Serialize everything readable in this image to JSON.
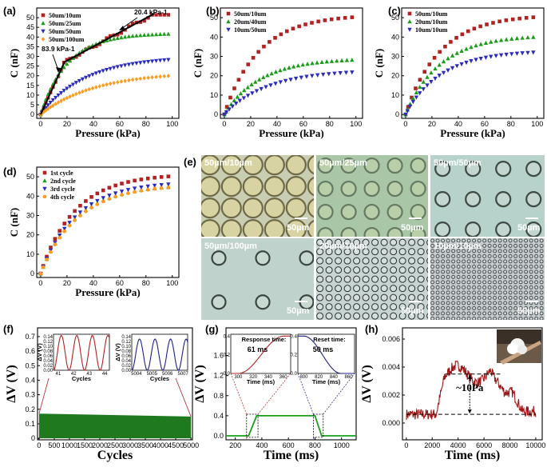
{
  "figure": {
    "colors": {
      "red": "#b22222",
      "green": "#1a9e1a",
      "blue": "#2b2bbd",
      "orange": "#ff9a1f",
      "dkred": "#a01515",
      "dkblue": "#1e1e8c",
      "dgreen": "#1f7a1f"
    },
    "micro_labels": [
      "50µm/10µm",
      "50µm/25µm",
      "50µm/50µm",
      "50µm/100µm",
      "20µm/10µm",
      "10µm/10µm"
    ],
    "scale_bar": "50µm"
  },
  "chart_data": [
    {
      "id": "a",
      "panel_label": "(a)",
      "type": "scatter",
      "xlabel": "Pressure (kPa)",
      "ylabel": "C (nF)",
      "xlim": [
        -3,
        105
      ],
      "ylim": [
        -2,
        55
      ],
      "xticks": [
        0,
        20,
        40,
        60,
        80,
        100
      ],
      "yticks": [
        0,
        5,
        10,
        15,
        20,
        25,
        30,
        35,
        40,
        45,
        50
      ],
      "series": [
        {
          "name": "50um/10um",
          "color": "#b22222",
          "marker": "square",
          "n": 40,
          "kind": "fit",
          "a": 80,
          "b": 48,
          "ymax": 51.5
        },
        {
          "name": "50um/25um",
          "color": "#1a9e1a",
          "marker": "triangle",
          "n": 40,
          "kind": "sat",
          "a": 48,
          "b": 38,
          "ymax": 42
        },
        {
          "name": "50um/50um",
          "color": "#2b2bbd",
          "marker": "tridown",
          "n": 40,
          "kind": "sat",
          "a": 41,
          "b": 62,
          "ymax": 30
        },
        {
          "name": "50um/100um",
          "color": "#ff9a1f",
          "marker": "diamond",
          "n": 40,
          "kind": "sat",
          "a": 30,
          "b": 75,
          "ymax": 22
        }
      ],
      "fit_lines": [
        [
          [
            0,
            0
          ],
          [
            18,
            27
          ]
        ],
        [
          [
            18,
            27
          ],
          [
            86,
            52
          ]
        ]
      ],
      "annotations": [
        {
          "text": "83.9 kPa-1"
        },
        {
          "text": "20.4 kPa-1"
        }
      ]
    },
    {
      "id": "b",
      "panel_label": "(b)",
      "type": "scatter",
      "xlabel": "Pressure (kPa)",
      "ylabel": "C (nF)",
      "xlim": [
        -3,
        105
      ],
      "ylim": [
        -2,
        55
      ],
      "xticks": [
        0,
        20,
        40,
        60,
        80,
        100
      ],
      "yticks": [
        0,
        10,
        20,
        30,
        40,
        50
      ],
      "series": [
        {
          "name": "50um/10um",
          "color": "#b22222",
          "marker": "square",
          "n": 24,
          "kind": "sat",
          "a": 80,
          "b": 48,
          "ymax": 51.5
        },
        {
          "name": "20um/40um",
          "color": "#1a9e1a",
          "marker": "triangle",
          "n": 32,
          "kind": "sat",
          "a": 40,
          "b": 50,
          "ymax": 29
        },
        {
          "name": "10um/50um",
          "color": "#2b2bbd",
          "marker": "tridown",
          "n": 28,
          "kind": "sat",
          "a": 32,
          "b": 60,
          "ymax": 23
        }
      ]
    },
    {
      "id": "c",
      "panel_label": "(c)",
      "type": "scatter",
      "xlabel": "Pressure (kPa)",
      "ylabel": "C (nF)",
      "xlim": [
        -3,
        105
      ],
      "ylim": [
        -2,
        55
      ],
      "xticks": [
        0,
        20,
        40,
        60,
        80,
        100
      ],
      "yticks": [
        0,
        10,
        20,
        30,
        40,
        50
      ],
      "series": [
        {
          "name": "50um/10um",
          "color": "#b22222",
          "marker": "square",
          "n": 24,
          "kind": "sat",
          "a": 80,
          "b": 48,
          "ymax": 51.5
        },
        {
          "name": "20um/10um",
          "color": "#1a9e1a",
          "marker": "triangle",
          "n": 30,
          "kind": "sat",
          "a": 60,
          "b": 48,
          "ymax": 41
        },
        {
          "name": "10um/10um",
          "color": "#2b2bbd",
          "marker": "tridown",
          "n": 30,
          "kind": "sat",
          "a": 48,
          "b": 50,
          "ymax": 33
        }
      ]
    },
    {
      "id": "d",
      "panel_label": "(d)",
      "type": "scatter",
      "xlabel": "Pressure (kPa)",
      "ylabel": "C (nF)",
      "xlim": [
        -3,
        105
      ],
      "ylim": [
        -2,
        55
      ],
      "xticks": [
        0,
        20,
        40,
        60,
        80,
        100
      ],
      "yticks": [
        0,
        10,
        20,
        30,
        40,
        50
      ],
      "series": [
        {
          "name": "1st cycle",
          "color": "#b22222",
          "marker": "square",
          "n": 24,
          "kind": "sat",
          "a": 80,
          "b": 48,
          "ymax": 51.5
        },
        {
          "name": "2nd cycle",
          "color": "#1a9e1a",
          "marker": "triangle",
          "n": 24,
          "kind": "sat",
          "a": 72,
          "b": 50,
          "ymax": 46
        },
        {
          "name": "3rd cycle",
          "color": "#2b2bbd",
          "marker": "tridown",
          "n": 24,
          "kind": "sat",
          "a": 74,
          "b": 50,
          "ymax": 47.5
        },
        {
          "name": "4th cycle",
          "color": "#ff9a1f",
          "marker": "circle",
          "n": 24,
          "kind": "sat",
          "a": 72,
          "b": 52,
          "ymax": 46
        }
      ]
    },
    {
      "id": "f",
      "panel_label": "(f)",
      "type": "area",
      "xlabel": "Cycles",
      "ylabel": "ΔV (V)",
      "xlim": [
        -50,
        5050
      ],
      "ylim": [
        -0.01,
        0.76
      ],
      "xticks": [
        0,
        500,
        1000,
        1500,
        2000,
        2500,
        3000,
        3500,
        4000,
        4500,
        5000
      ],
      "yticks": [
        0.0,
        0.1,
        0.2,
        0.3,
        0.4,
        0.5,
        0.6,
        0.7
      ],
      "band": {
        "top_start": 0.17,
        "top_end": 0.15,
        "bottom": 0.0,
        "color": "#1f7a1f"
      },
      "insets": [
        {
          "xticks": [
            41,
            42,
            43,
            44
          ],
          "xlim": [
            40.7,
            44.3
          ],
          "yticks": [
            0.0,
            0.02,
            0.04,
            0.06,
            0.08,
            0.1,
            0.12,
            0.14
          ],
          "ylim": [
            0,
            0.15
          ],
          "xlabel": "Cycles",
          "ylabel": "ΔV (V)",
          "color": "#b22222",
          "amp": 0.145
        },
        {
          "xticks": [
            5004,
            5005,
            5006,
            5007
          ],
          "xlim": [
            5003.7,
            5007.3
          ],
          "yticks": [
            0.0,
            0.02,
            0.04,
            0.06,
            0.08,
            0.1,
            0.12,
            0.14
          ],
          "ylim": [
            0,
            0.15
          ],
          "xlabel": "Cycles",
          "ylabel": "ΔV (V)",
          "color": "#1e1e8c",
          "amp": 0.13
        }
      ]
    },
    {
      "id": "g",
      "panel_label": "(g)",
      "type": "line",
      "xlabel": "Time (ms)",
      "ylabel": "ΔV (V)",
      "xlim": [
        130,
        1110
      ],
      "ylim": [
        -0.08,
        2.15
      ],
      "xticks": [
        200,
        400,
        600,
        800,
        1000
      ],
      "yticks": [
        0.0,
        0.4,
        0.8,
        1.2,
        1.6
      ],
      "pulse": {
        "t_rise": [
          300,
          361
        ],
        "t_fall": [
          800,
          850
        ],
        "level": 0.4,
        "color": "#1a9e1a"
      },
      "insets": [
        {
          "title": "Response time:",
          "value": "61 ms",
          "title_color": "#b22222",
          "xticks": [
            300,
            320,
            340,
            360
          ],
          "xlim": [
            290,
            370
          ],
          "yticks": [
            0.0,
            0.2,
            0.4
          ],
          "ylim": [
            0,
            0.42
          ],
          "xlabel": "Time (ms)",
          "ylabel": "ΔV (V)",
          "color": "#b22222"
        },
        {
          "title": "Reset time:",
          "value": "50 ms",
          "title_color": "#1e1e8c",
          "xticks": [
            800,
            820,
            840,
            860
          ],
          "xlim": [
            792,
            868
          ],
          "yticks": [
            0.0,
            0.2,
            0.4
          ],
          "ylim": [
            0,
            0.42
          ],
          "xlabel": "Time (ms)",
          "ylabel": "ΔV (V)",
          "color": "#1e1e8c"
        }
      ]
    },
    {
      "id": "h",
      "panel_label": "(h)",
      "type": "line",
      "xlabel": "Time (ms)",
      "ylabel": "ΔV (V)",
      "xlim": [
        -300,
        10500
      ],
      "ylim": [
        -0.0012,
        0.0068
      ],
      "xticks": [
        0,
        2000,
        4000,
        6000,
        8000,
        10000
      ],
      "yticks": [
        0.0,
        0.002,
        0.004,
        0.006
      ],
      "annotation": "~10Pa",
      "color": "#a01515",
      "levels": {
        "low": 0.00062,
        "high": 0.0035
      }
    }
  ]
}
